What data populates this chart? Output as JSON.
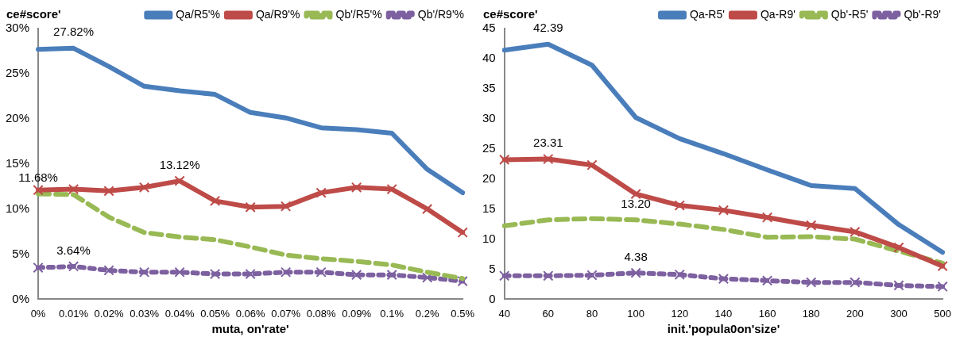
{
  "chart_data": [
    {
      "type": "line",
      "ylabel": "ce#score'",
      "xlabel": "muta, on'rate'",
      "categories": [
        "0%",
        "0.01%",
        "0.02%",
        "0.03%",
        "0.04%",
        "0.05%",
        "0.06%",
        "0.07%",
        "0.08%",
        "0.09%",
        "0.1%",
        "0.2%",
        "0.5%"
      ],
      "series": [
        {
          "name": "Qa/R5'%",
          "color": "#4a7ebb",
          "marker": "none",
          "line_style": "solid",
          "values": [
            27.7,
            27.82,
            25.8,
            23.6,
            23.1,
            22.7,
            20.7,
            20.1,
            19.0,
            18.8,
            18.4,
            14.4,
            11.8
          ]
        },
        {
          "name": "Qa/R9'%",
          "color": "#be4b48",
          "marker": "cross",
          "line_style": "solid",
          "values": [
            12.1,
            12.2,
            12.0,
            12.4,
            13.12,
            10.9,
            10.2,
            10.3,
            11.8,
            12.4,
            12.2,
            10.0,
            7.4
          ]
        },
        {
          "name": "Qb'/R5'%",
          "color": "#98b954",
          "marker": "none",
          "line_style": "dashed",
          "values": [
            11.68,
            11.6,
            9.1,
            7.4,
            6.9,
            6.6,
            5.8,
            4.9,
            4.5,
            4.2,
            3.8,
            3.0,
            2.3
          ]
        },
        {
          "name": "Qb'/R9'%",
          "color": "#7d60a0",
          "marker": "cross",
          "line_style": "dotted",
          "values": [
            3.5,
            3.64,
            3.2,
            3.0,
            3.0,
            2.8,
            2.8,
            3.0,
            3.0,
            2.7,
            2.7,
            2.4,
            2.0
          ]
        }
      ],
      "ylim": [
        0,
        30
      ],
      "yticks": [
        {
          "value": 0,
          "label": "0%"
        },
        {
          "value": 5,
          "label": "5%"
        },
        {
          "value": 10,
          "label": "10%"
        },
        {
          "value": 15,
          "label": "15%"
        },
        {
          "value": 20,
          "label": "20%"
        },
        {
          "value": 25,
          "label": "25%"
        },
        {
          "value": 30,
          "label": "30%"
        }
      ],
      "annotations": [
        {
          "text": "27.82%",
          "x": "0.01%",
          "y": 27.82
        },
        {
          "text": "13.12%",
          "x": "0.04%",
          "y": 13.12
        },
        {
          "text": "11.68%",
          "x": "0%",
          "y": 11.68
        },
        {
          "text": "3.64%",
          "x": "0.01%",
          "y": 3.64
        }
      ],
      "grid": false,
      "legend": "top right"
    },
    {
      "type": "line",
      "ylabel": "ce#score'",
      "xlabel": "init.'popula0on'size'",
      "categories": [
        "40",
        "60",
        "80",
        "100",
        "120",
        "140",
        "160",
        "180",
        "200",
        "300",
        "500"
      ],
      "series": [
        {
          "name": "Qa-R5'",
          "color": "#4a7ebb",
          "marker": "none",
          "line_style": "solid",
          "values": [
            41.4,
            42.39,
            38.9,
            30.2,
            26.7,
            24.2,
            21.5,
            18.9,
            18.4,
            12.4,
            7.8
          ]
        },
        {
          "name": "Qa-R9'",
          "color": "#be4b48",
          "marker": "cross",
          "line_style": "solid",
          "values": [
            23.2,
            23.31,
            22.3,
            17.5,
            15.6,
            14.8,
            13.6,
            12.3,
            11.2,
            8.6,
            5.5
          ]
        },
        {
          "name": "Qb'-R5'",
          "color": "#98b954",
          "marker": "none",
          "line_style": "dashed",
          "values": [
            12.2,
            13.2,
            13.4,
            13.2,
            12.5,
            11.6,
            10.3,
            10.4,
            10.0,
            8.0,
            6.0
          ]
        },
        {
          "name": "Qb'-R9'",
          "color": "#7d60a0",
          "marker": "cross",
          "line_style": "dotted",
          "values": [
            3.9,
            3.9,
            4.0,
            4.38,
            4.1,
            3.4,
            3.1,
            2.8,
            2.8,
            2.3,
            2.1
          ]
        }
      ],
      "ylim": [
        0,
        45
      ],
      "yticks": [
        0,
        5,
        10,
        15,
        20,
        25,
        30,
        35,
        40,
        45
      ],
      "annotations": [
        {
          "text": "42.39",
          "x": "60",
          "y": 42.39
        },
        {
          "text": "23.31",
          "x": "60",
          "y": 23.31
        },
        {
          "text": "13.20",
          "x": "100",
          "y": 13.2
        },
        {
          "text": "4.38",
          "x": "100",
          "y": 4.38
        }
      ],
      "grid": false,
      "legend": "top right"
    }
  ]
}
